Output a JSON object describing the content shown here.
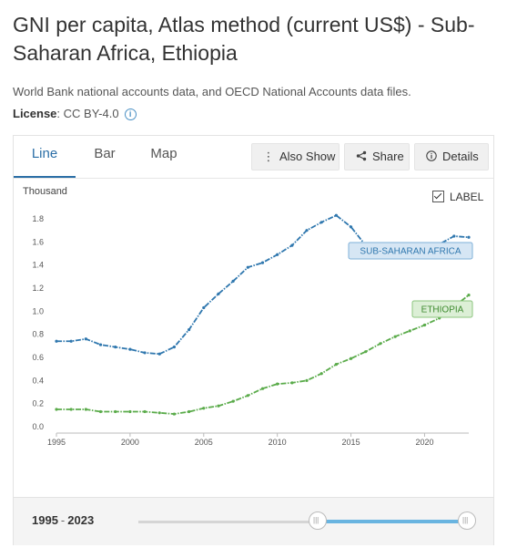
{
  "page": {
    "title": "GNI per capita, Atlas method (current US$) - Sub-Saharan Africa, Ethiopia",
    "source": "World Bank national accounts data, and OECD National Accounts data files.",
    "license_label": "License",
    "license_value": ": CC BY-4.0"
  },
  "tabs": [
    {
      "label": "Line",
      "active": true
    },
    {
      "label": "Bar",
      "active": false
    },
    {
      "label": "Map",
      "active": false
    }
  ],
  "toolbar": {
    "also_show": "Also Show",
    "share": "Share",
    "details": "Details"
  },
  "chart_controls": {
    "unit_label": "Thousand",
    "label_toggle": "LABEL",
    "label_checked": true
  },
  "range": {
    "start": "1995",
    "end": "2023"
  },
  "chart_data": {
    "type": "line",
    "ylabel": "Thousand",
    "ylim": [
      0,
      1.8
    ],
    "yticks": [
      "0.0",
      "0.2",
      "0.4",
      "0.6",
      "0.8",
      "1.0",
      "1.2",
      "1.4",
      "1.6",
      "1.8"
    ],
    "xlim": [
      1995,
      2023
    ],
    "xticks": [
      "1995",
      "2000",
      "2005",
      "2010",
      "2015",
      "2020"
    ],
    "x": [
      1995,
      1996,
      1997,
      1998,
      1999,
      2000,
      2001,
      2002,
      2003,
      2004,
      2005,
      2006,
      2007,
      2008,
      2009,
      2010,
      2011,
      2012,
      2013,
      2014,
      2015,
      2016,
      2017,
      2018,
      2019,
      2020,
      2021,
      2022,
      2023
    ],
    "series": [
      {
        "name": "SUB-SAHARAN AFRICA",
        "color": "#2f77ae",
        "values": [
          0.74,
          0.74,
          0.76,
          0.71,
          0.69,
          0.67,
          0.64,
          0.63,
          0.69,
          0.84,
          1.03,
          1.15,
          1.26,
          1.38,
          1.42,
          1.49,
          1.57,
          1.7,
          1.77,
          1.83,
          1.73,
          1.57,
          1.48,
          1.5,
          1.53,
          1.51,
          1.58,
          1.65,
          1.64
        ]
      },
      {
        "name": "ETHIOPIA",
        "color": "#5aab4a",
        "values": [
          0.15,
          0.15,
          0.15,
          0.13,
          0.13,
          0.13,
          0.13,
          0.12,
          0.11,
          0.13,
          0.16,
          0.18,
          0.22,
          0.27,
          0.33,
          0.37,
          0.38,
          0.4,
          0.46,
          0.54,
          0.59,
          0.65,
          0.72,
          0.78,
          0.83,
          0.88,
          0.94,
          1.04,
          1.14
        ]
      }
    ],
    "grid": false
  }
}
